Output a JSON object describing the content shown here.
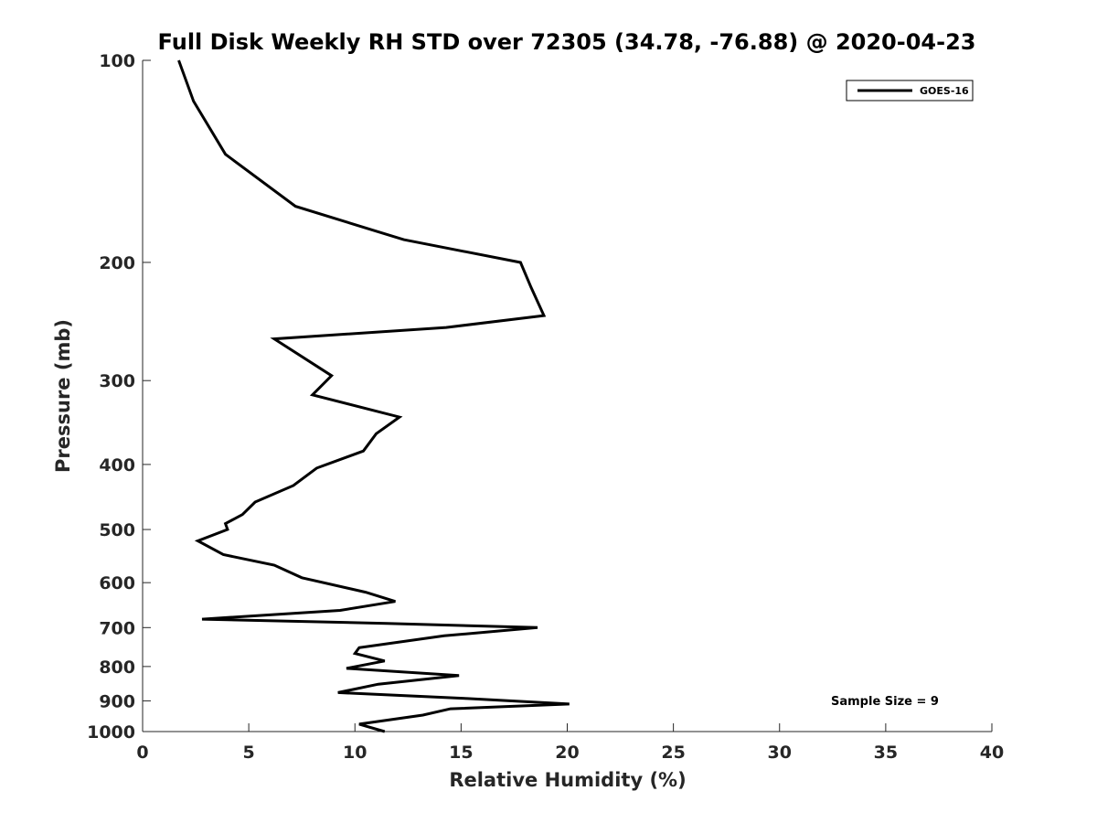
{
  "chart_data": {
    "type": "line",
    "title": "Full Disk Weekly RH STD over 72305 (34.78, -76.88) @ 2020-04-23",
    "xlabel": "Relative Humidity (%)",
    "ylabel": "Pressure (mb)",
    "xlim": [
      0,
      40
    ],
    "ylim": [
      1000,
      100
    ],
    "yscale": "log",
    "grid": false,
    "legend_position": "top-right",
    "x_ticks": [
      0,
      5,
      10,
      15,
      20,
      25,
      30,
      35,
      40
    ],
    "y_ticks": [
      100,
      200,
      300,
      400,
      500,
      600,
      700,
      800,
      900,
      1000
    ],
    "annotation": "Sample Size = 9",
    "series": [
      {
        "name": "GOES-16",
        "color": "#000000",
        "rh": [
          1.7,
          2.4,
          3.9,
          7.2,
          12.3,
          17.8,
          18.3,
          18.9,
          14.3,
          6.2,
          8.9,
          8.0,
          12.1,
          11.0,
          10.4,
          8.2,
          7.1,
          5.3,
          4.7,
          3.9,
          4.0,
          2.6,
          3.8,
          6.2,
          7.5,
          10.5,
          11.9,
          9.3,
          2.8,
          11.5,
          18.6,
          14.2,
          10.2,
          10.0,
          11.4,
          9.6,
          14.9,
          11.1,
          9.2,
          15.3,
          20.1,
          14.5,
          13.2,
          10.2,
          11.4
        ],
        "pressure": [
          100,
          115,
          138,
          165,
          185,
          200,
          218,
          240,
          250,
          260,
          295,
          315,
          340,
          360,
          382,
          405,
          430,
          455,
          475,
          490,
          500,
          520,
          545,
          565,
          590,
          620,
          640,
          660,
          680,
          690,
          700,
          720,
          750,
          765,
          785,
          805,
          825,
          850,
          875,
          893,
          910,
          925,
          945,
          975,
          1000
        ]
      }
    ]
  }
}
